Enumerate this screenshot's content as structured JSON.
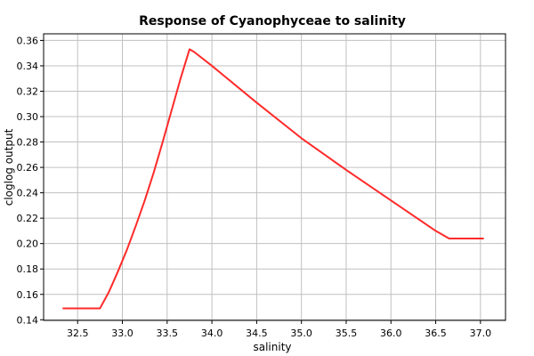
{
  "chart_data": {
    "type": "line",
    "title": "Response of Cyanophyceae to salinity",
    "xlabel": "salinity",
    "ylabel": "cloglog output",
    "xlim": [
      32.12,
      37.28
    ],
    "ylim": [
      0.1395,
      0.3652
    ],
    "xticks": [
      32.5,
      33.0,
      33.5,
      34.0,
      34.5,
      35.0,
      35.5,
      36.0,
      36.5,
      37.0
    ],
    "xtick_labels": [
      "32.5",
      "33.0",
      "33.5",
      "34.0",
      "34.5",
      "35.0",
      "35.5",
      "36.0",
      "36.5",
      "37.0"
    ],
    "yticks": [
      0.14,
      0.16,
      0.18,
      0.2,
      0.22,
      0.24,
      0.26,
      0.28,
      0.3,
      0.32,
      0.34,
      0.36
    ],
    "ytick_labels": [
      "0.14",
      "0.16",
      "0.18",
      "0.20",
      "0.22",
      "0.24",
      "0.26",
      "0.28",
      "0.30",
      "0.32",
      "0.34",
      "0.36"
    ],
    "grid": true,
    "colors": {
      "line": "#ff2a2a",
      "grid": "#c0c0c0",
      "axis": "#000000"
    },
    "series": [
      {
        "x": [
          32.34,
          32.75,
          32.85,
          32.95,
          33.05,
          33.15,
          33.25,
          33.35,
          33.45,
          33.55,
          33.65,
          33.75,
          33.8,
          34.0,
          34.5,
          35.0,
          35.5,
          36.0,
          36.5,
          36.65,
          37.03
        ],
        "y": [
          0.149,
          0.149,
          0.162,
          0.178,
          0.195,
          0.214,
          0.234,
          0.256,
          0.28,
          0.305,
          0.33,
          0.353,
          0.351,
          0.34,
          0.311,
          0.283,
          0.258,
          0.234,
          0.21,
          0.204,
          0.204
        ]
      }
    ]
  }
}
